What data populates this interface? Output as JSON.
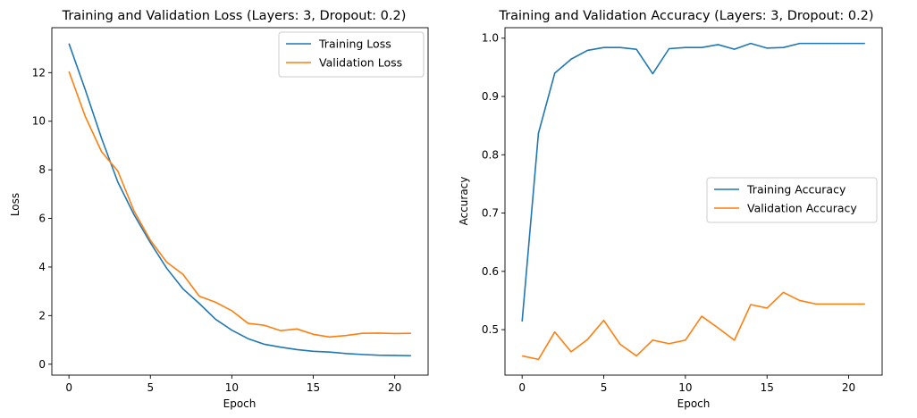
{
  "chart_data": [
    {
      "type": "line",
      "title": "Training and Validation Loss (Layers: 3, Dropout: 0.2)",
      "xlabel": "Epoch",
      "ylabel": "Loss",
      "xlim": [
        -1.05,
        22.05
      ],
      "ylim": [
        -0.45,
        13.85
      ],
      "xticks": [
        0,
        5,
        10,
        15,
        20
      ],
      "yticks": [
        0,
        2,
        4,
        6,
        8,
        10,
        12
      ],
      "grid": false,
      "legend_position": "top-right",
      "x": [
        0,
        1,
        2,
        3,
        4,
        5,
        6,
        7,
        8,
        9,
        10,
        11,
        12,
        13,
        14,
        15,
        16,
        17,
        18,
        19,
        20,
        21
      ],
      "series": [
        {
          "name": "Training Loss",
          "color": "#1f77b4",
          "values": [
            13.2,
            11.3,
            9.3,
            7.5,
            6.15,
            5.0,
            3.95,
            3.1,
            2.5,
            1.85,
            1.4,
            1.05,
            0.82,
            0.7,
            0.6,
            0.53,
            0.5,
            0.44,
            0.4,
            0.37,
            0.36,
            0.35
          ]
        },
        {
          "name": "Validation Loss",
          "color": "#ff7f0e",
          "values": [
            12.05,
            10.2,
            8.75,
            7.95,
            6.3,
            5.1,
            4.2,
            3.7,
            2.8,
            2.55,
            2.2,
            1.68,
            1.6,
            1.38,
            1.45,
            1.23,
            1.12,
            1.18,
            1.27,
            1.28,
            1.26,
            1.27
          ]
        }
      ]
    },
    {
      "type": "line",
      "title": "Training and Validation Accuracy (Layers: 3, Dropout: 0.2)",
      "xlabel": "Epoch",
      "ylabel": "Accuracy",
      "xlim": [
        -1.05,
        22.05
      ],
      "ylim": [
        0.422,
        1.018
      ],
      "xticks": [
        0,
        5,
        10,
        15,
        20
      ],
      "yticks": [
        0.5,
        0.6,
        0.7,
        0.8,
        0.9,
        1.0
      ],
      "ytick_labels": [
        "0.5",
        "0.6",
        "0.7",
        "0.8",
        "0.9",
        "1.0"
      ],
      "grid": false,
      "legend_position": "center-right",
      "x": [
        0,
        1,
        2,
        3,
        4,
        5,
        6,
        7,
        8,
        9,
        10,
        11,
        12,
        13,
        14,
        15,
        16,
        17,
        18,
        19,
        20,
        21
      ],
      "series": [
        {
          "name": "Training Accuracy",
          "color": "#1f77b4",
          "values": [
            0.514,
            0.837,
            0.94,
            0.964,
            0.979,
            0.984,
            0.984,
            0.981,
            0.939,
            0.982,
            0.984,
            0.984,
            0.989,
            0.981,
            0.991,
            0.983,
            0.984,
            0.991,
            0.991,
            0.991,
            0.991,
            0.991
          ]
        },
        {
          "name": "Validation Accuracy",
          "color": "#ff7f0e",
          "values": [
            0.455,
            0.449,
            0.496,
            0.462,
            0.483,
            0.516,
            0.475,
            0.455,
            0.482,
            0.476,
            0.482,
            0.523,
            0.503,
            0.482,
            0.543,
            0.537,
            0.564,
            0.55,
            0.544,
            0.544,
            0.544,
            0.544
          ]
        }
      ]
    }
  ]
}
